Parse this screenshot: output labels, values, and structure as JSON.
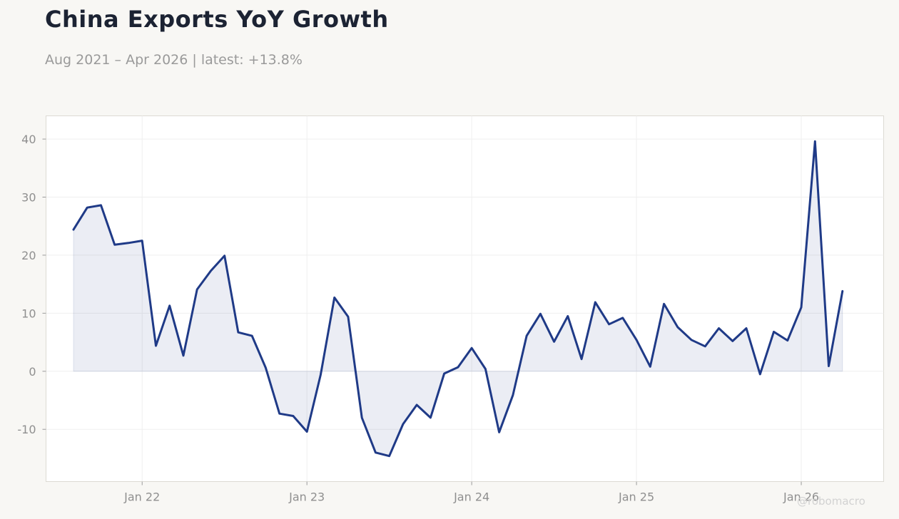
{
  "header": {
    "title": "China Exports YoY Growth",
    "subtitle": "Aug 2021 – Apr 2026 | latest: +13.8%"
  },
  "watermark": "@robomacro",
  "colors": {
    "line": "#1f3a87",
    "fill": "#1f3a87",
    "background": "#f8f7f4",
    "plot_background": "#ffffff",
    "grid": "#efefef",
    "title": "#1c2333",
    "subtitle": "#9a9a9a",
    "tick_labels": "#8f8f8f"
  },
  "chart_data": {
    "type": "area",
    "title": "China Exports YoY Growth",
    "subtitle": "Aug 2021 – Apr 2026 | latest: +13.8%",
    "xlabel": "",
    "ylabel": "",
    "grid": true,
    "legend": "none",
    "x_ticks": [
      {
        "date": "2022-01",
        "label": "Jan 22"
      },
      {
        "date": "2023-01",
        "label": "Jan 23"
      },
      {
        "date": "2024-01",
        "label": "Jan 24"
      },
      {
        "date": "2025-01",
        "label": "Jan 25"
      },
      {
        "date": "2026-01",
        "label": "Jan 26"
      }
    ],
    "y_ticks": [
      -10,
      0,
      10,
      20,
      30,
      40
    ],
    "xlim": [
      "2021-06",
      "2026-07"
    ],
    "ylim": [
      -19,
      44
    ],
    "series": [
      {
        "x": [
          "2021-08",
          "2021-09",
          "2021-10",
          "2021-11",
          "2021-12",
          "2022-01",
          "2022-02",
          "2022-03",
          "2022-04",
          "2022-05",
          "2022-06",
          "2022-07",
          "2022-08",
          "2022-09",
          "2022-10",
          "2022-11",
          "2022-12",
          "2023-01",
          "2023-02",
          "2023-03",
          "2023-04",
          "2023-05",
          "2023-06",
          "2023-07",
          "2023-08",
          "2023-09",
          "2023-10",
          "2023-11",
          "2023-12",
          "2024-01",
          "2024-02",
          "2024-03",
          "2024-04",
          "2024-05",
          "2024-06",
          "2024-07",
          "2024-08",
          "2024-09",
          "2024-10",
          "2024-11",
          "2024-12",
          "2025-01",
          "2025-02",
          "2025-03",
          "2025-04",
          "2025-05",
          "2025-06",
          "2025-07",
          "2025-08",
          "2025-09",
          "2025-10",
          "2025-11",
          "2025-12",
          "2026-01",
          "2026-02",
          "2026-03",
          "2026-04"
        ],
        "values": [
          24.4,
          28.2,
          28.6,
          21.8,
          22.1,
          22.5,
          4.4,
          11.3,
          2.7,
          14.1,
          17.3,
          19.9,
          6.7,
          6.1,
          0.6,
          -7.3,
          -7.7,
          -10.4,
          -0.6,
          12.7,
          9.4,
          -8.0,
          -14.0,
          -14.6,
          -9.1,
          -5.8,
          -8.0,
          -0.4,
          0.7,
          4.0,
          0.4,
          -10.5,
          -4.1,
          6.1,
          9.9,
          5.1,
          9.5,
          2.1,
          11.9,
          8.1,
          9.2,
          5.4,
          0.8,
          11.6,
          7.6,
          5.4,
          4.3,
          7.4,
          5.2,
          7.4,
          -0.5,
          6.8,
          5.3,
          11.0,
          39.6,
          0.9,
          13.8
        ]
      }
    ]
  }
}
